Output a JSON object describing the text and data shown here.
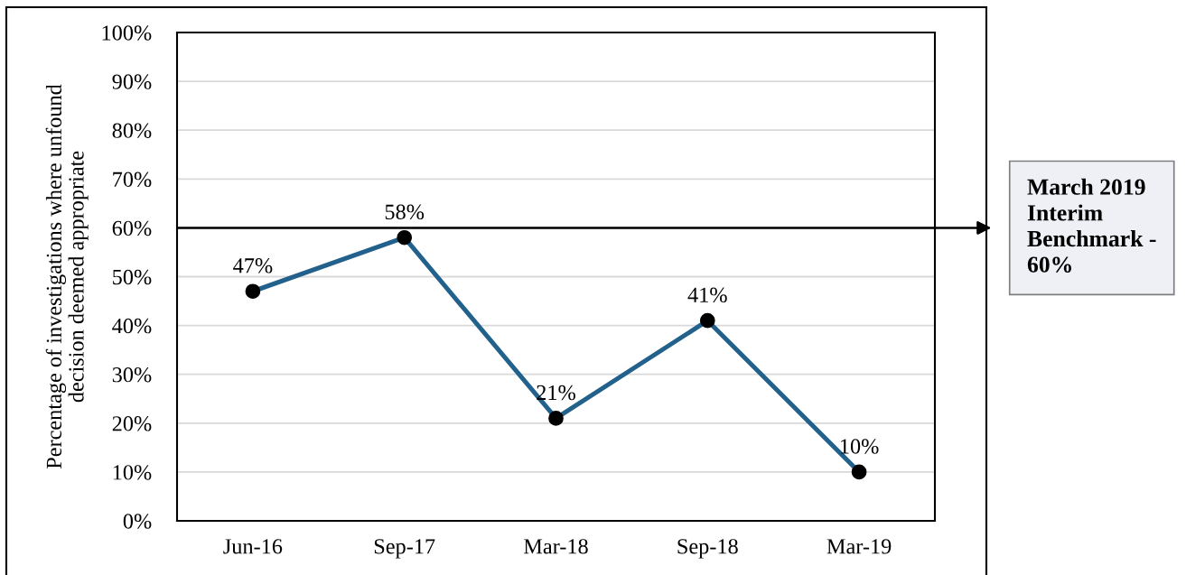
{
  "chart_data": {
    "type": "line",
    "ylabel": "Percentage of investigations where unfound\ndecision deemed appropriate",
    "categories": [
      "Jun-16",
      "Sep-17",
      "Mar-18",
      "Sep-18",
      "Mar-19"
    ],
    "values": [
      47,
      58,
      21,
      41,
      10
    ],
    "color": "#22618c",
    "value_labels": [
      "47%",
      "58%",
      "21%",
      "41%",
      "10%"
    ],
    "marker": "circle",
    "line_style": "solid",
    "ylim": [
      0,
      100
    ],
    "yticks": [
      {
        "value": 0,
        "label": "0%"
      },
      {
        "value": 10,
        "label": "10%"
      },
      {
        "value": 20,
        "label": "20%"
      },
      {
        "value": 30,
        "label": "30%"
      },
      {
        "value": 40,
        "label": "40%"
      },
      {
        "value": 50,
        "label": "50%"
      },
      {
        "value": 60,
        "label": "60%"
      },
      {
        "value": 70,
        "label": "70%"
      },
      {
        "value": 80,
        "label": "80%"
      },
      {
        "value": 90,
        "label": "90%"
      },
      {
        "value": 100,
        "label": "100%"
      }
    ],
    "grid": "y",
    "ref_lines": [
      {
        "axis": "y",
        "value": 60,
        "label": "March 2019\nInterim\nBenchmark -\n60%",
        "color": "#000000"
      }
    ]
  }
}
